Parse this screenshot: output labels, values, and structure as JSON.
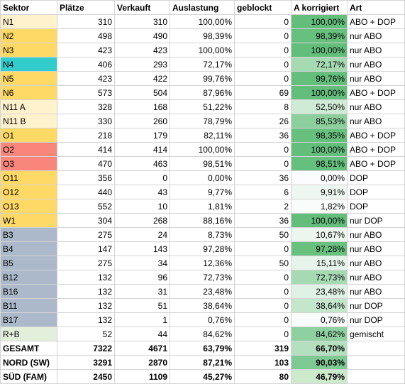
{
  "headers": [
    "Sektor",
    "Plätze",
    "Verkauft",
    "Auslastung",
    "geblockt",
    "A korrigiert",
    "Art"
  ],
  "rows": [
    {
      "sektor": "N1",
      "plaetze": "310",
      "verkauft": "310",
      "auslastung": "100,00%",
      "geblockt": "0",
      "korrigiert": "100,00%",
      "art": "ABO + DOP",
      "sektor_color": "#fff2cc",
      "korr_color": "#63be7b"
    },
    {
      "sektor": "N2",
      "plaetze": "498",
      "verkauft": "490",
      "auslastung": "98,39%",
      "geblockt": "0",
      "korrigiert": "98,39%",
      "art": "nur ABO",
      "sektor_color": "#ffd966",
      "korr_color": "#67c07e"
    },
    {
      "sektor": "N3",
      "plaetze": "423",
      "verkauft": "423",
      "auslastung": "100,00%",
      "geblockt": "0",
      "korrigiert": "100,00%",
      "art": "nur ABO",
      "sektor_color": "#ffd966",
      "korr_color": "#63be7b"
    },
    {
      "sektor": "N4",
      "plaetze": "406",
      "verkauft": "293",
      "auslastung": "72,17%",
      "geblockt": "0",
      "korrigiert": "72,17%",
      "art": "nur ABO",
      "sektor_color": "#33cccc",
      "korr_color": "#a6dab3"
    },
    {
      "sektor": "N5",
      "plaetze": "423",
      "verkauft": "422",
      "auslastung": "99,76%",
      "geblockt": "0",
      "korrigiert": "99,76%",
      "art": "nur ABO",
      "sektor_color": "#ffd966",
      "korr_color": "#64bf7c"
    },
    {
      "sektor": "N6",
      "plaetze": "573",
      "verkauft": "504",
      "auslastung": "87,96%",
      "geblockt": "69",
      "korrigiert": "100,00%",
      "art": "ABO + DOP",
      "sektor_color": "#ffd966",
      "korr_color": "#63be7b"
    },
    {
      "sektor": "N11 A",
      "plaetze": "328",
      "verkauft": "168",
      "auslastung": "51,22%",
      "geblockt": "8",
      "korrigiert": "52,50%",
      "art": "nur ABO",
      "sektor_color": "#fff2cc",
      "korr_color": "#cfebd6"
    },
    {
      "sektor": "N11 B",
      "plaetze": "330",
      "verkauft": "260",
      "auslastung": "78,79%",
      "geblockt": "26",
      "korrigiert": "85,53%",
      "art": "nur ABO",
      "sektor_color": "#fff2cc",
      "korr_color": "#8ccf9d"
    },
    {
      "sektor": "O1",
      "plaetze": "218",
      "verkauft": "179",
      "auslastung": "82,11%",
      "geblockt": "36",
      "korrigiert": "98,35%",
      "art": "ABO + DOP",
      "sektor_color": "#ffd966",
      "korr_color": "#67c07e"
    },
    {
      "sektor": "O2",
      "plaetze": "414",
      "verkauft": "414",
      "auslastung": "100,00%",
      "geblockt": "0",
      "korrigiert": "100,00%",
      "art": "ABO + DOP",
      "sektor_color": "#f8867a",
      "korr_color": "#63be7b"
    },
    {
      "sektor": "O3",
      "plaetze": "470",
      "verkauft": "463",
      "auslastung": "98,51%",
      "geblockt": "0",
      "korrigiert": "98,51%",
      "art": "ABO + DOP",
      "sektor_color": "#f8867a",
      "korr_color": "#66c07d"
    },
    {
      "sektor": "O11",
      "plaetze": "356",
      "verkauft": "0",
      "auslastung": "0,00%",
      "geblockt": "36",
      "korrigiert": "0,00%",
      "art": "DOP",
      "sektor_color": "#ffd966",
      "korr_color": "#fcfcff"
    },
    {
      "sektor": "O12",
      "plaetze": "440",
      "verkauft": "43",
      "auslastung": "9,77%",
      "geblockt": "6",
      "korrigiert": "9,91%",
      "art": "DOP",
      "sektor_color": "#ffd966",
      "korr_color": "#eef7f1"
    },
    {
      "sektor": "O13",
      "plaetze": "552",
      "verkauft": "10",
      "auslastung": "1,81%",
      "geblockt": "2",
      "korrigiert": "1,82%",
      "art": "DOP",
      "sektor_color": "#ffd966",
      "korr_color": "#f9fcfb"
    },
    {
      "sektor": "W1",
      "plaetze": "304",
      "verkauft": "268",
      "auslastung": "88,16%",
      "geblockt": "36",
      "korrigiert": "100,00%",
      "art": "nur DOP",
      "sektor_color": "#ffd966",
      "korr_color": "#63be7b"
    },
    {
      "sektor": "B3",
      "plaetze": "275",
      "verkauft": "24",
      "auslastung": "8,73%",
      "geblockt": "50",
      "korrigiert": "10,67%",
      "art": "nur ABO",
      "sektor_color": "#acb9ca",
      "korr_color": "#ecf6ef"
    },
    {
      "sektor": "B4",
      "plaetze": "147",
      "verkauft": "143",
      "auslastung": "97,28%",
      "geblockt": "0",
      "korrigiert": "97,28%",
      "art": "nur ABO",
      "sektor_color": "#acb9ca",
      "korr_color": "#69c17f"
    },
    {
      "sektor": "B5",
      "plaetze": "275",
      "verkauft": "34",
      "auslastung": "12,36%",
      "geblockt": "50",
      "korrigiert": "15,11%",
      "art": "nur ABO",
      "sektor_color": "#acb9ca",
      "korr_color": "#e7f4eb"
    },
    {
      "sektor": "B12",
      "plaetze": "132",
      "verkauft": "96",
      "auslastung": "72,73%",
      "geblockt": "0",
      "korrigiert": "72,73%",
      "art": "nur ABO",
      "sektor_color": "#acb9ca",
      "korr_color": "#a6dab3"
    },
    {
      "sektor": "B16",
      "plaetze": "132",
      "verkauft": "31",
      "auslastung": "23,48%",
      "geblockt": "0",
      "korrigiert": "23,48%",
      "art": "nur ABO",
      "sektor_color": "#acb9ca",
      "korr_color": "#e0f1e5"
    },
    {
      "sektor": "B11",
      "plaetze": "132",
      "verkauft": "51",
      "auslastung": "38,64%",
      "geblockt": "0",
      "korrigiert": "38,64%",
      "art": "nur DOP",
      "sektor_color": "#acb9ca",
      "korr_color": "#c4e6cd"
    },
    {
      "sektor": "B17",
      "plaetze": "132",
      "verkauft": "1",
      "auslastung": "0,76%",
      "geblockt": "0",
      "korrigiert": "0,76%",
      "art": "nur DOP",
      "sektor_color": "#acb9ca",
      "korr_color": "#fafcfc"
    },
    {
      "sektor": "R+B",
      "plaetze": "52",
      "verkauft": "44",
      "auslastung": "84,62%",
      "geblockt": "0",
      "korrigiert": "84,62%",
      "art": "gemischt",
      "sektor_color": "#e2efda",
      "korr_color": "#8ed09f"
    }
  ],
  "totals": [
    {
      "sektor": "GESAMT",
      "plaetze": "7322",
      "verkauft": "4671",
      "auslastung": "63,79%",
      "geblockt": "319",
      "korrigiert": "66,70%",
      "art": "",
      "korr_color": "#b5e0c0"
    },
    {
      "sektor": "NORD (SW)",
      "plaetze": "3291",
      "verkauft": "2870",
      "auslastung": "87,21%",
      "geblockt": "103",
      "korrigiert": "90,03%",
      "art": "",
      "korr_color": "#7ec994"
    },
    {
      "sektor": "SÜD (FAM)",
      "plaetze": "2450",
      "verkauft": "1109",
      "auslastung": "45,27%",
      "geblockt": "80",
      "korrigiert": "46,79%",
      "art": "",
      "korr_color": "#cdeacd"
    }
  ]
}
